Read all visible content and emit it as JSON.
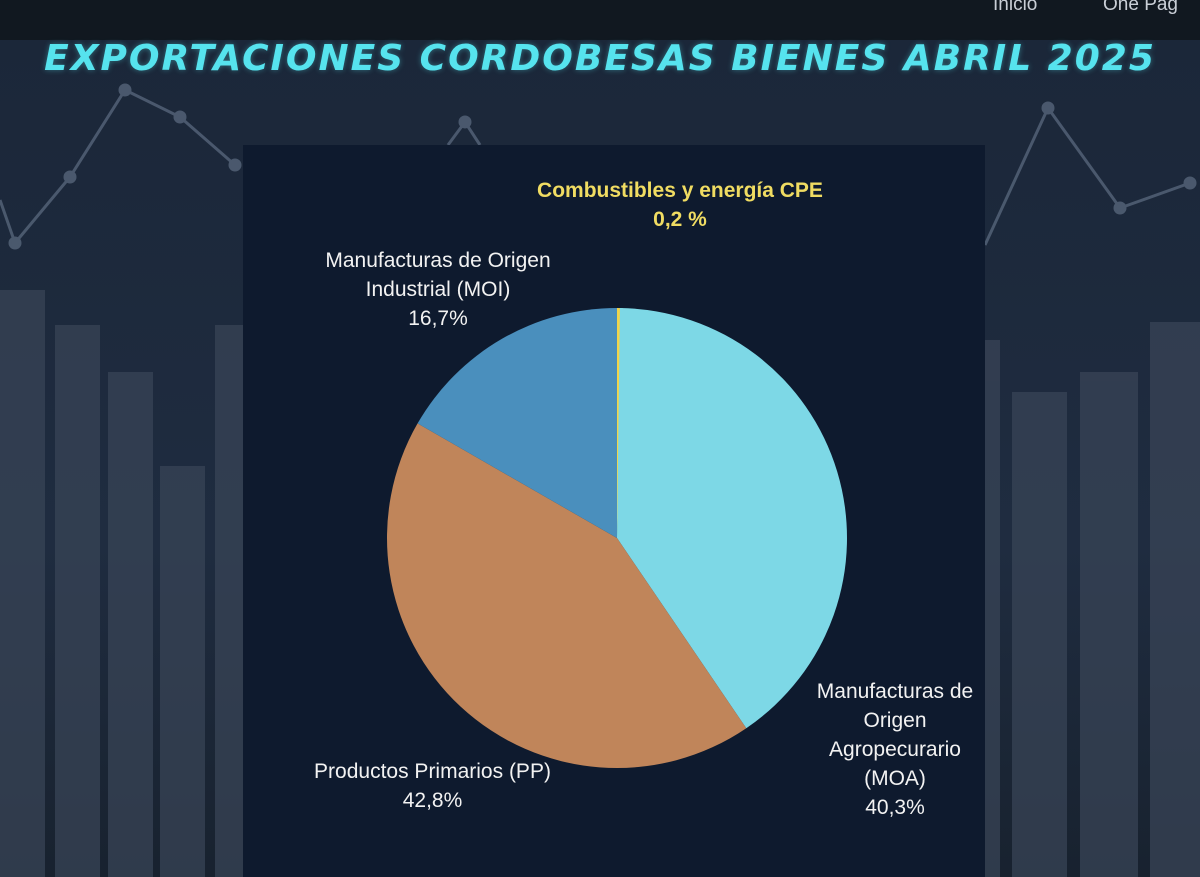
{
  "nav": {
    "items": [
      "Inicio",
      "One Pag"
    ]
  },
  "chart_data": {
    "type": "pie",
    "title": "EXPORTACIONES CORDOBESAS BIENES ABRIL 2025",
    "start": "top",
    "direction": "clockwise",
    "slices": [
      {
        "label": "Combustibles y energía CPE",
        "value": 0.2,
        "value_label": "0,2 %",
        "color": "#f2d54a"
      },
      {
        "label": "Manufacturas de Origen Agropecurario (MOA)",
        "value": 40.3,
        "value_label": "40,3%",
        "color": "#7dd8e6"
      },
      {
        "label": "Productos Primarios (PP)",
        "value": 42.8,
        "value_label": "42,8%",
        "color": "#c0855a"
      },
      {
        "label": "Manufacturas de Origen Industrial (MOI)",
        "value": 16.7,
        "value_label": "16,7%",
        "color": "#4a8fbd"
      }
    ]
  }
}
